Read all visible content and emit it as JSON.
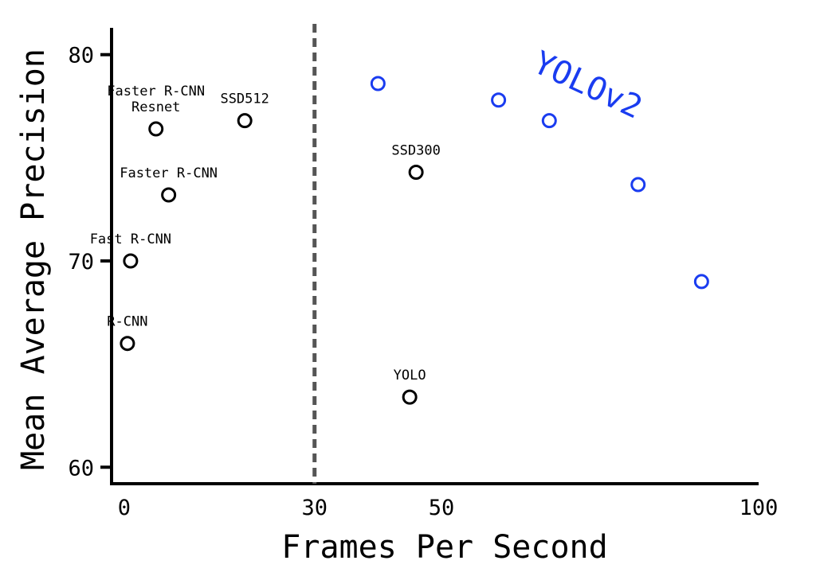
{
  "chart_data": {
    "type": "scatter",
    "xlabel": "Frames Per Second",
    "ylabel": "Mean Average Precision",
    "xlim": [
      -2,
      100
    ],
    "ylim": [
      59.2,
      81.3
    ],
    "x_ticks": [
      {
        "value": 0,
        "label": "0"
      },
      {
        "value": 30,
        "label": "30"
      },
      {
        "value": 50,
        "label": "50"
      },
      {
        "value": 100,
        "label": "100"
      }
    ],
    "y_ticks": [
      {
        "value": 60,
        "label": "60"
      },
      {
        "value": 70,
        "label": "70"
      },
      {
        "value": 80,
        "label": "80"
      }
    ],
    "reference_line": {
      "axis": "x",
      "value": 30,
      "style": "dashed"
    },
    "colors": {
      "baseline": "#000000",
      "yolov2": "#1a3cf0",
      "reference_line": "#555555"
    },
    "series": [
      {
        "name": "",
        "color": "#000000",
        "points": [
          {
            "label": "R-CNN",
            "x": 0.5,
            "y": 66.0
          },
          {
            "label": "Fast R-CNN",
            "x": 1,
            "y": 70.0
          },
          {
            "label": "Faster R-CNN",
            "x": 7,
            "y": 73.2
          },
          {
            "label": "Faster R-CNN\nResnet",
            "x": 5,
            "y": 76.4
          },
          {
            "label": "SSD512",
            "x": 19,
            "y": 76.8
          },
          {
            "label": "SSD300",
            "x": 46,
            "y": 74.3
          },
          {
            "label": "YOLO",
            "x": 45,
            "y": 63.4
          }
        ]
      },
      {
        "name": "YOLOv2",
        "color": "#1a3cf0",
        "points": [
          {
            "x": 40,
            "y": 78.6
          },
          {
            "x": 59,
            "y": 77.8
          },
          {
            "x": 67,
            "y": 76.8
          },
          {
            "x": 81,
            "y": 73.7
          },
          {
            "x": 91,
            "y": 69.0
          }
        ]
      }
    ]
  }
}
